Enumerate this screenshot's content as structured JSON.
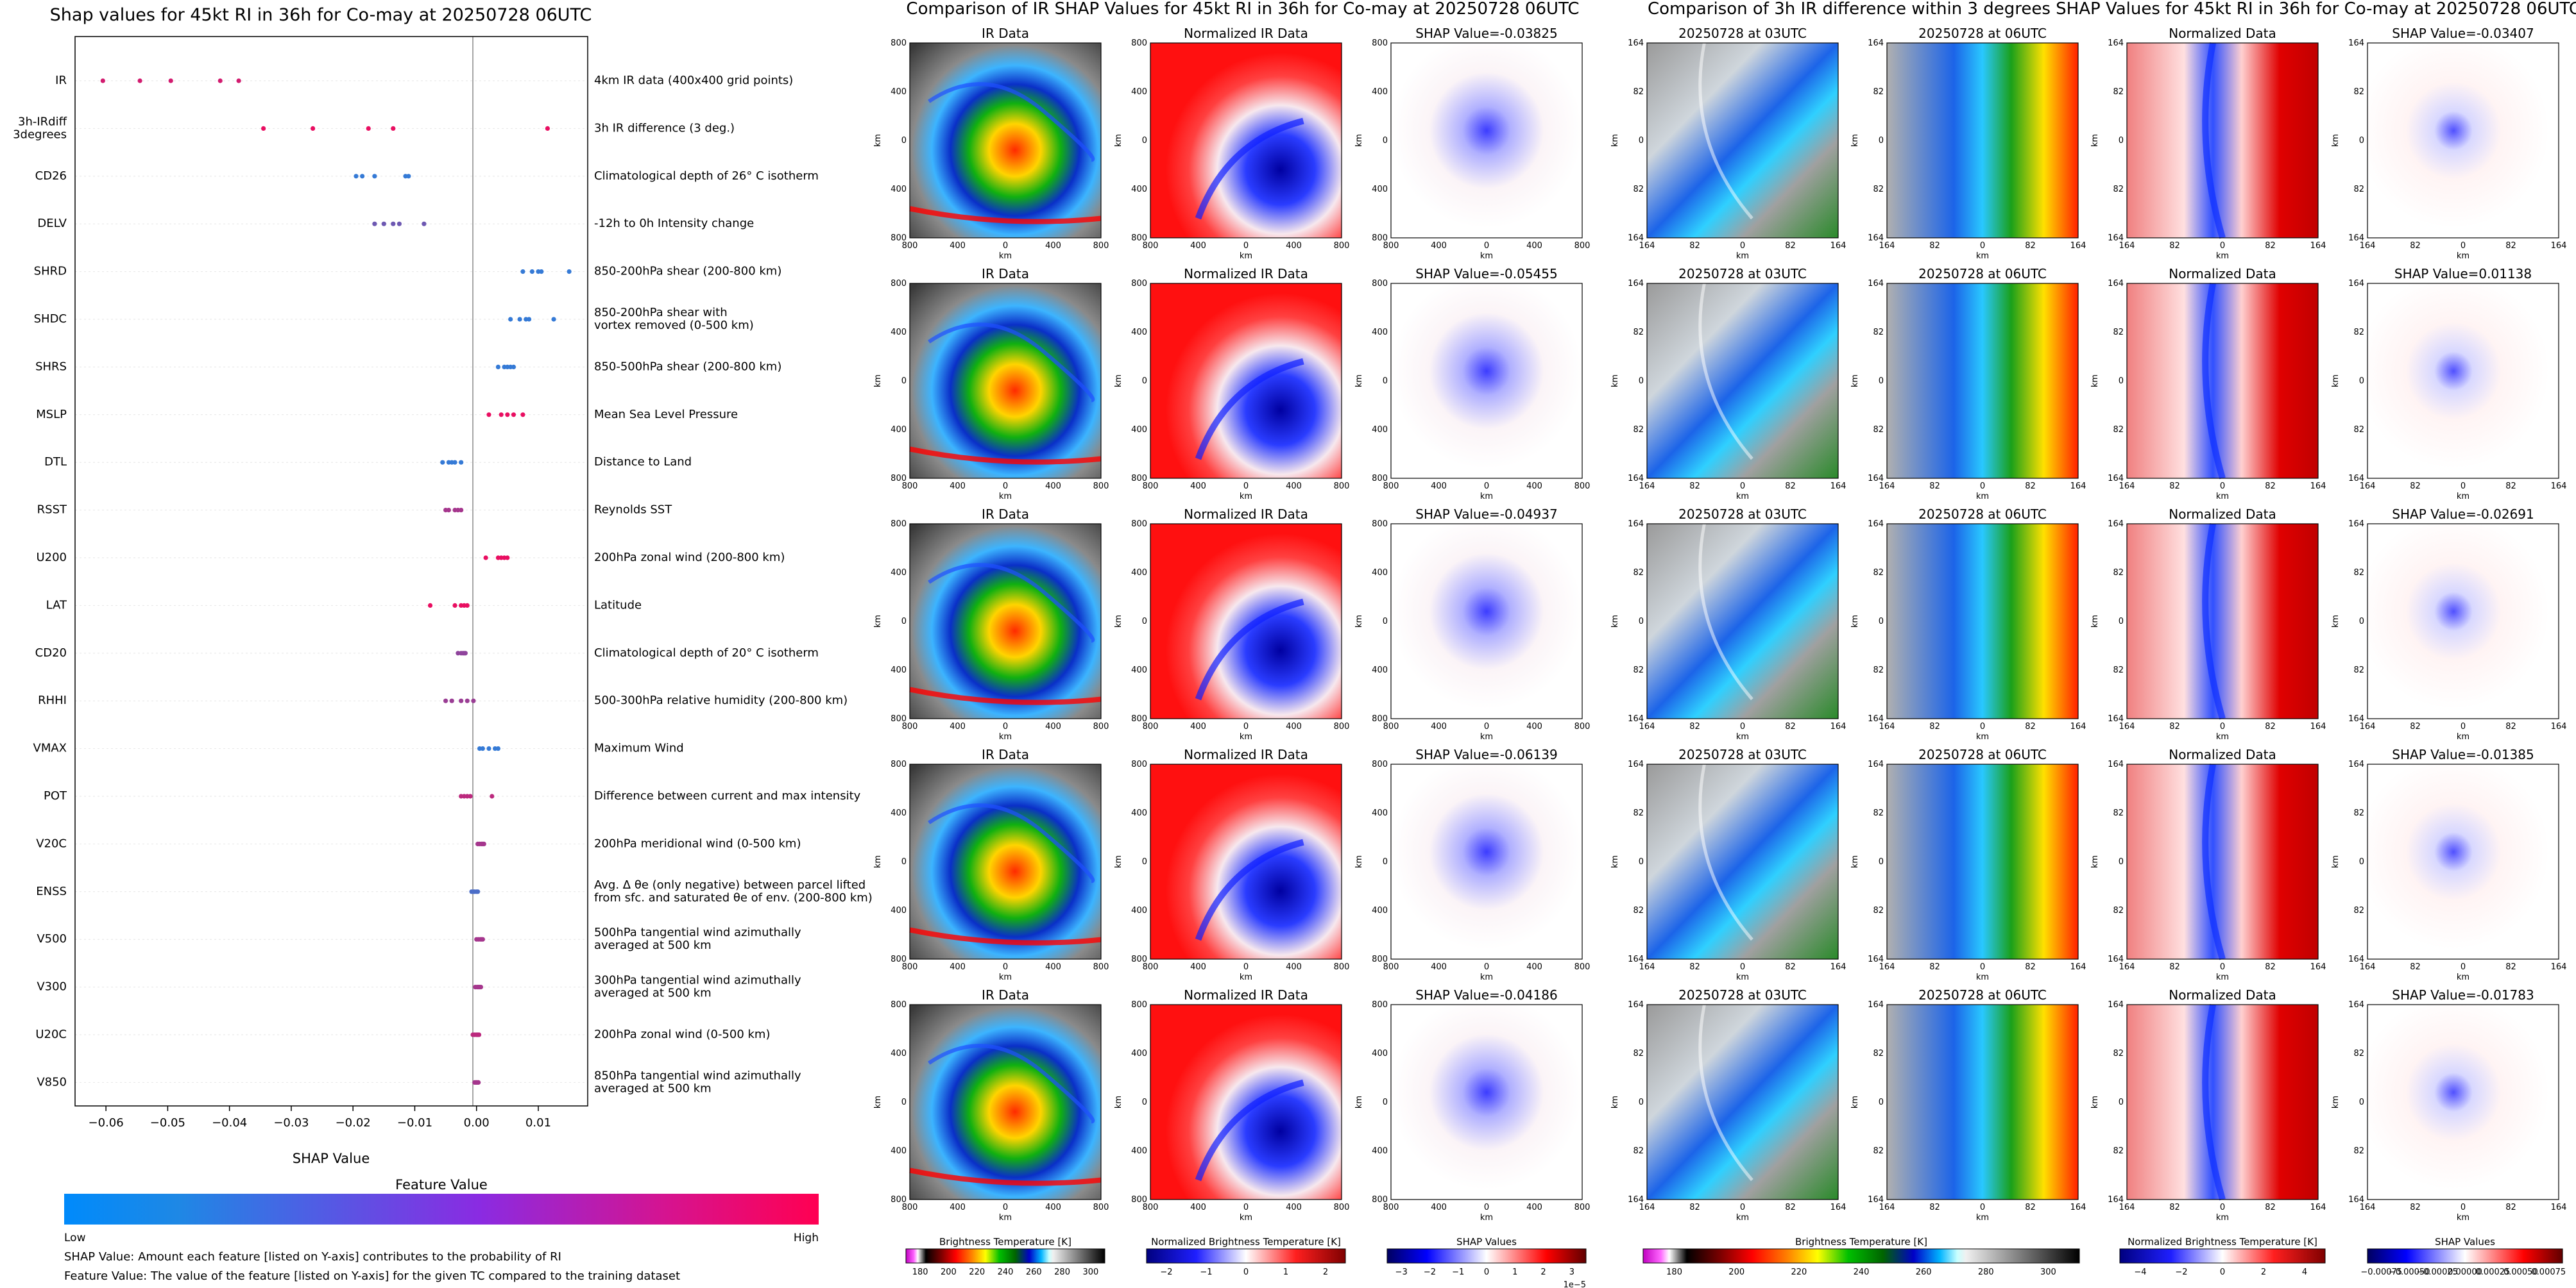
{
  "colors": {
    "feature_low": "#1e88e5",
    "feature_high": "#ff0052",
    "axis": "#000000",
    "grid": "#e6e6e6",
    "zero_line": "#888888"
  },
  "chart_data": [
    {
      "type": "scatter",
      "title": "Shap values for 45kt RI in 36h for Co-may at 20250728 06UTC",
      "xlabel": "SHAP Value",
      "xlim": [
        -0.065,
        0.018
      ],
      "xticks": [
        "−0.06",
        "−0.05",
        "−0.04",
        "−0.03",
        "−0.02",
        "−0.01",
        "0.00",
        "0.01"
      ],
      "xtick_values": [
        -0.06,
        -0.05,
        -0.04,
        -0.03,
        -0.02,
        -0.01,
        0.0,
        0.01
      ],
      "colorbar": {
        "title": "Feature Value",
        "low": "Low",
        "high": "High"
      },
      "notes": [
        "SHAP Value: Amount each feature [listed on Y-axis] contributes to the probability of RI",
        "Feature Value: The value of the feature [listed on Y-axis] for the given TC compared to the training dataset"
      ],
      "features": [
        {
          "name": "IR",
          "description": "4km IR data (400x400 grid points)",
          "values": [
            -0.0605,
            -0.0545,
            -0.0495,
            -0.0415,
            -0.0385
          ],
          "feature_value": 0.8
        },
        {
          "name": "3h-IRdiff\n3degrees",
          "description": "3h IR difference (3 deg.)",
          "values": [
            -0.0345,
            -0.0265,
            -0.0175,
            -0.0135,
            0.0115
          ],
          "feature_value": 0.9
        },
        {
          "name": "CD26",
          "description": "Climatological depth of 26° C isotherm",
          "values": [
            -0.0195,
            -0.0185,
            -0.0165,
            -0.0115,
            -0.011
          ],
          "feature_value": 0.1
        },
        {
          "name": "DELV",
          "description": "-12h to 0h Intensity change",
          "values": [
            -0.0165,
            -0.015,
            -0.0135,
            -0.0125,
            -0.0085
          ],
          "feature_value": 0.35
        },
        {
          "name": "SHRD",
          "description": "850-200hPa shear (200-800 km)",
          "values": [
            0.0075,
            0.009,
            0.01,
            0.0105,
            0.015
          ],
          "feature_value": 0.1
        },
        {
          "name": "SHDC",
          "description": "850-200hPa shear with\nvortex removed (0-500 km)",
          "values": [
            0.0055,
            0.007,
            0.008,
            0.0085,
            0.0125
          ],
          "feature_value": 0.1
        },
        {
          "name": "SHRS",
          "description": "850-500hPa shear (200-800 km)",
          "values": [
            0.0035,
            0.0045,
            0.005,
            0.0055,
            0.006
          ],
          "feature_value": 0.1
        },
        {
          "name": "MSLP",
          "description": "Mean Sea Level Pressure",
          "values": [
            0.002,
            0.004,
            0.005,
            0.006,
            0.0075
          ],
          "feature_value": 0.9
        },
        {
          "name": "DTL",
          "description": "Distance to Land",
          "values": [
            -0.0055,
            -0.0045,
            -0.004,
            -0.0035,
            -0.0025
          ],
          "feature_value": 0.1
        },
        {
          "name": "RSST",
          "description": "Reynolds SST",
          "values": [
            -0.005,
            -0.0045,
            -0.0035,
            -0.003,
            -0.0025
          ],
          "feature_value": 0.6
        },
        {
          "name": "U200",
          "description": "200hPa zonal wind (200-800 km)",
          "values": [
            0.0015,
            0.0035,
            0.004,
            0.0045,
            0.005
          ],
          "feature_value": 0.9
        },
        {
          "name": "LAT",
          "description": "Latitude",
          "values": [
            -0.0075,
            -0.0035,
            -0.0025,
            -0.002,
            -0.0015
          ],
          "feature_value": 0.9
        },
        {
          "name": "CD20",
          "description": "Climatological depth of 20° C isotherm",
          "values": [
            -0.003,
            -0.0025,
            -0.0022,
            -0.002,
            -0.0018
          ],
          "feature_value": 0.5
        },
        {
          "name": "RHHI",
          "description": "500-300hPa relative humidity (200-800 km)",
          "values": [
            -0.005,
            -0.004,
            -0.0025,
            -0.0015,
            -0.0005
          ],
          "feature_value": 0.55
        },
        {
          "name": "VMAX",
          "description": "Maximum Wind",
          "values": [
            0.0005,
            0.001,
            0.002,
            0.003,
            0.0035
          ],
          "feature_value": 0.1
        },
        {
          "name": "POT",
          "description": "Difference between current and max intensity",
          "values": [
            -0.0025,
            -0.002,
            -0.0015,
            -0.001,
            0.0025
          ],
          "feature_value": 0.7
        },
        {
          "name": "V20C",
          "description": "200hPa meridional wind (0-500 km)",
          "values": [
            0.0002,
            0.0005,
            0.0008,
            0.001,
            0.0012
          ],
          "feature_value": 0.6
        },
        {
          "name": "ENSS",
          "description": "Avg. Δ θe (only negative) between parcel lifted\nfrom sfc. and saturated θe of env. (200-800 km)",
          "values": [
            -0.0008,
            -0.0005,
            -0.0003,
            0.0,
            0.0002
          ],
          "feature_value": 0.2
        },
        {
          "name": "V500",
          "description": "500hPa tangential wind azimuthally\naveraged at 500 km",
          "values": [
            0.0,
            0.0003,
            0.0006,
            0.0008,
            0.001
          ],
          "feature_value": 0.6
        },
        {
          "name": "V300",
          "description": "300hPa tangential wind azimuthally\naveraged at 500 km",
          "values": [
            -0.0002,
            0.0001,
            0.0003,
            0.0005,
            0.0007
          ],
          "feature_value": 0.6
        },
        {
          "name": "U20C",
          "description": "200hPa zonal wind (0-500 km)",
          "values": [
            -0.0006,
            -0.0003,
            0.0,
            0.0002,
            0.0004
          ],
          "feature_value": 0.7
        },
        {
          "name": "V850",
          "description": "850hPa tangential wind azimuthally\naveraged at 500 km",
          "values": [
            -0.0003,
            -0.0001,
            0.0,
            0.0002,
            0.0003
          ],
          "feature_value": 0.6
        }
      ]
    },
    {
      "type": "heatmap",
      "title": "Comparison of IR SHAP Values for 45kt RI in 36h for Co-may at 20250728 06UTC",
      "column_titles": [
        "IR Data",
        "Normalized IR Data"
      ],
      "shap_titles": [
        "SHAP Value=-0.03825",
        "SHAP Value=-0.05455",
        "SHAP Value=-0.04937",
        "SHAP Value=-0.06139",
        "SHAP Value=-0.04186"
      ],
      "axis_label": "km",
      "ticks": [
        "800",
        "400",
        "0",
        "400",
        "800"
      ],
      "colorbars": [
        {
          "label": "Brightness Temperature [K]",
          "ticks": [
            "180",
            "200",
            "220",
            "240",
            "260",
            "280",
            "300"
          ],
          "colormap": "ir"
        },
        {
          "label": "Normalized Brightness Temperature [K]",
          "ticks": [
            "−2",
            "−1",
            "0",
            "1",
            "2"
          ],
          "colormap": "bwr"
        },
        {
          "label": "SHAP Values",
          "ticks": [
            "−3",
            "−2",
            "−1",
            "0",
            "1",
            "2",
            "3"
          ],
          "offset": "1e−5",
          "colormap": "bwr"
        }
      ]
    },
    {
      "type": "heatmap",
      "title": "Comparison of 3h IR difference within 3 degrees SHAP Values for 45kt RI in 36h for Co-may at 20250728 06UTC",
      "column_titles": [
        "20250728 at 03UTC",
        "20250728 at 06UTC",
        "Normalized Data"
      ],
      "shap_titles": [
        "SHAP Value=-0.03407",
        "SHAP Value=0.01138",
        "SHAP Value=-0.02691",
        "SHAP Value=-0.01385",
        "SHAP Value=-0.01783"
      ],
      "axis_label": "km",
      "ticks": [
        "164",
        "82",
        "0",
        "82",
        "164"
      ],
      "colorbars": [
        {
          "label": "Brightness Temperature [K]",
          "ticks": [
            "180",
            "200",
            "220",
            "240",
            "260",
            "280",
            "300"
          ],
          "colormap": "ir"
        },
        {
          "label": "Normalized Brightness Temperature [K]",
          "ticks": [
            "−4",
            "−2",
            "0",
            "2",
            "4"
          ],
          "colormap": "bwr"
        },
        {
          "label": "SHAP Values",
          "ticks": [
            "−0.00075",
            "−0.00050",
            "−0.00025",
            "0.00000",
            "0.00025",
            "0.00050",
            "0.00075"
          ],
          "colormap": "bwr"
        }
      ]
    }
  ]
}
